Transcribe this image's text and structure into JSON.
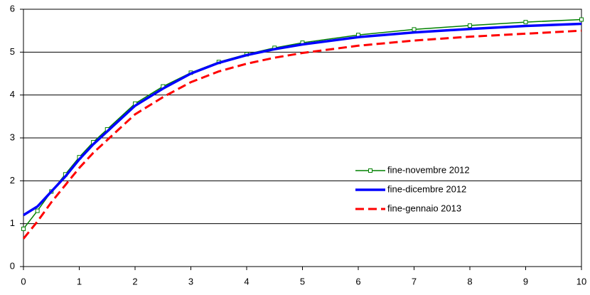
{
  "chart_data": {
    "type": "line",
    "x": [
      0,
      0.25,
      0.5,
      0.75,
      1,
      1.25,
      1.5,
      2,
      2.5,
      3,
      3.5,
      4,
      4.5,
      5,
      6,
      7,
      8,
      9,
      10
    ],
    "series": [
      {
        "name": "fine-novembre 2012",
        "color": "#008000",
        "style": "markers",
        "values": [
          0.88,
          1.3,
          1.75,
          2.15,
          2.55,
          2.9,
          3.2,
          3.8,
          4.2,
          4.52,
          4.77,
          4.95,
          5.1,
          5.22,
          5.4,
          5.53,
          5.62,
          5.7,
          5.76
        ]
      },
      {
        "name": "fine-dicembre 2012",
        "color": "#0000ff",
        "style": "solid",
        "values": [
          1.2,
          1.4,
          1.75,
          2.1,
          2.5,
          2.85,
          3.15,
          3.75,
          4.15,
          4.5,
          4.75,
          4.93,
          5.07,
          5.18,
          5.35,
          5.46,
          5.54,
          5.61,
          5.66
        ]
      },
      {
        "name": "fine-gennaio 2013",
        "color": "#ff0000",
        "style": "dashed",
        "values": [
          0.65,
          1.05,
          1.5,
          1.9,
          2.3,
          2.65,
          2.95,
          3.55,
          3.95,
          4.3,
          4.55,
          4.73,
          4.87,
          4.98,
          5.15,
          5.27,
          5.36,
          5.43,
          5.5
        ]
      }
    ],
    "xlim": [
      0,
      10
    ],
    "xticks": [
      0,
      1,
      2,
      3,
      4,
      5,
      6,
      7,
      8,
      9,
      10
    ],
    "ylim": [
      0,
      6
    ],
    "yticks": [
      0,
      1,
      2,
      3,
      4,
      5,
      6
    ],
    "grid": true,
    "legend_position": "center-right"
  }
}
